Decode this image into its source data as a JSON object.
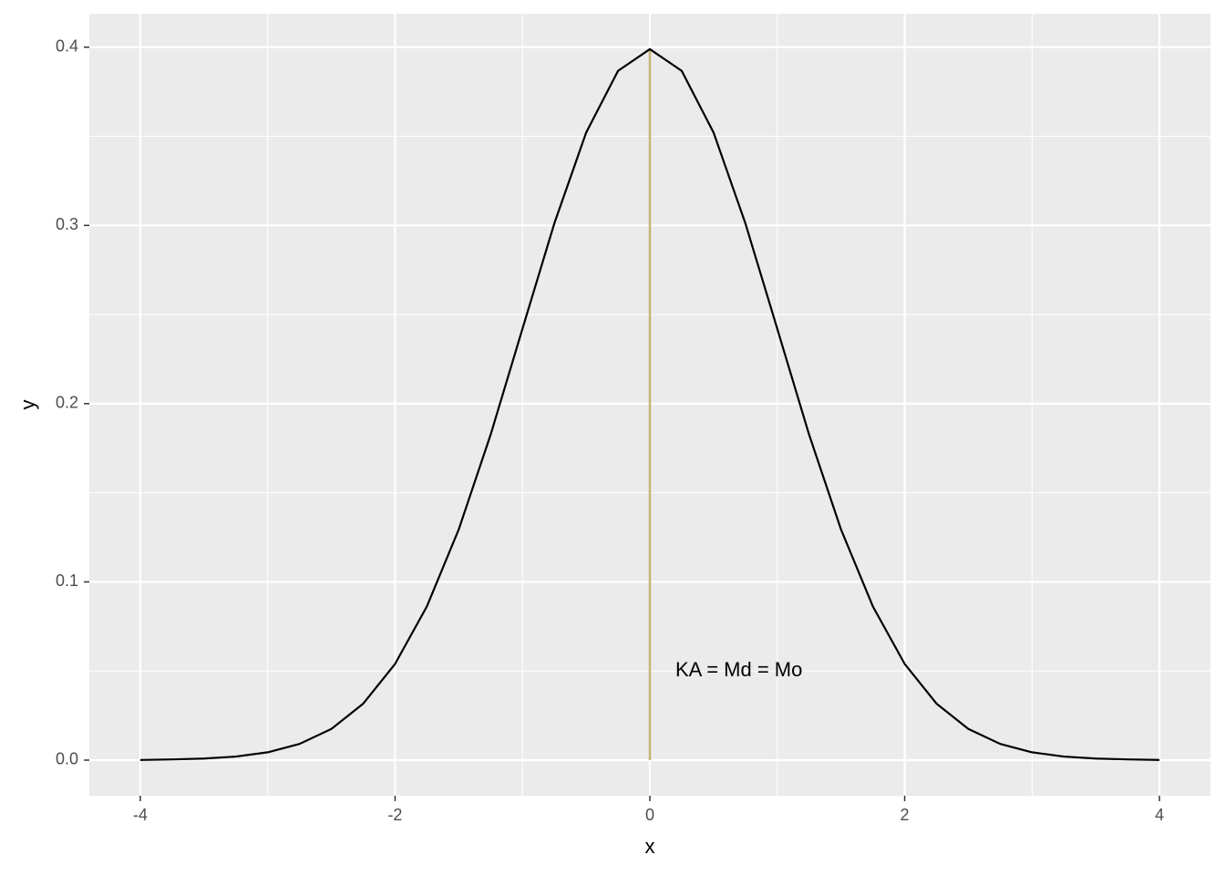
{
  "chart_data": {
    "type": "line",
    "x": [
      -4,
      -3.75,
      -3.5,
      -3.25,
      -3,
      -2.75,
      -2.5,
      -2.25,
      -2,
      -1.75,
      -1.5,
      -1.25,
      -1,
      -0.75,
      -0.5,
      -0.25,
      0,
      0.25,
      0.5,
      0.75,
      1,
      1.25,
      1.5,
      1.75,
      2,
      2.25,
      2.5,
      2.75,
      3,
      3.25,
      3.5,
      3.75,
      4
    ],
    "series": [
      {
        "color": "#000000",
        "values": [
          0.0001,
          0.0004,
          0.0009,
          0.002,
          0.0044,
          0.0091,
          0.0175,
          0.0317,
          0.054,
          0.0863,
          0.1295,
          0.1826,
          0.242,
          0.3011,
          0.3521,
          0.3867,
          0.3989,
          0.3867,
          0.3521,
          0.3011,
          0.242,
          0.1826,
          0.1295,
          0.0863,
          0.054,
          0.0317,
          0.0175,
          0.0091,
          0.0044,
          0.002,
          0.0009,
          0.0004,
          0.0001
        ]
      }
    ],
    "vline": {
      "x": 0,
      "y": [
        0,
        0.3989
      ],
      "color": "#c8b27a"
    },
    "annotation": {
      "text": "KA = Md = Mo",
      "x": 0.2,
      "y": 0.05
    },
    "xlabel": "x",
    "ylabel": "y",
    "xlim": [
      -4.4,
      4.4
    ],
    "ylim": [
      -0.01995,
      0.4188
    ],
    "xticks": [
      -4,
      -2,
      0,
      2,
      4
    ],
    "yticks": [
      {
        "value": 0,
        "label": "0.0"
      },
      0.1,
      0.2,
      0.3,
      0.4
    ],
    "xminor": [
      -3,
      -1,
      1,
      3
    ],
    "yminor": [
      0.05,
      0.15,
      0.25,
      0.35
    ],
    "grid": true
  }
}
